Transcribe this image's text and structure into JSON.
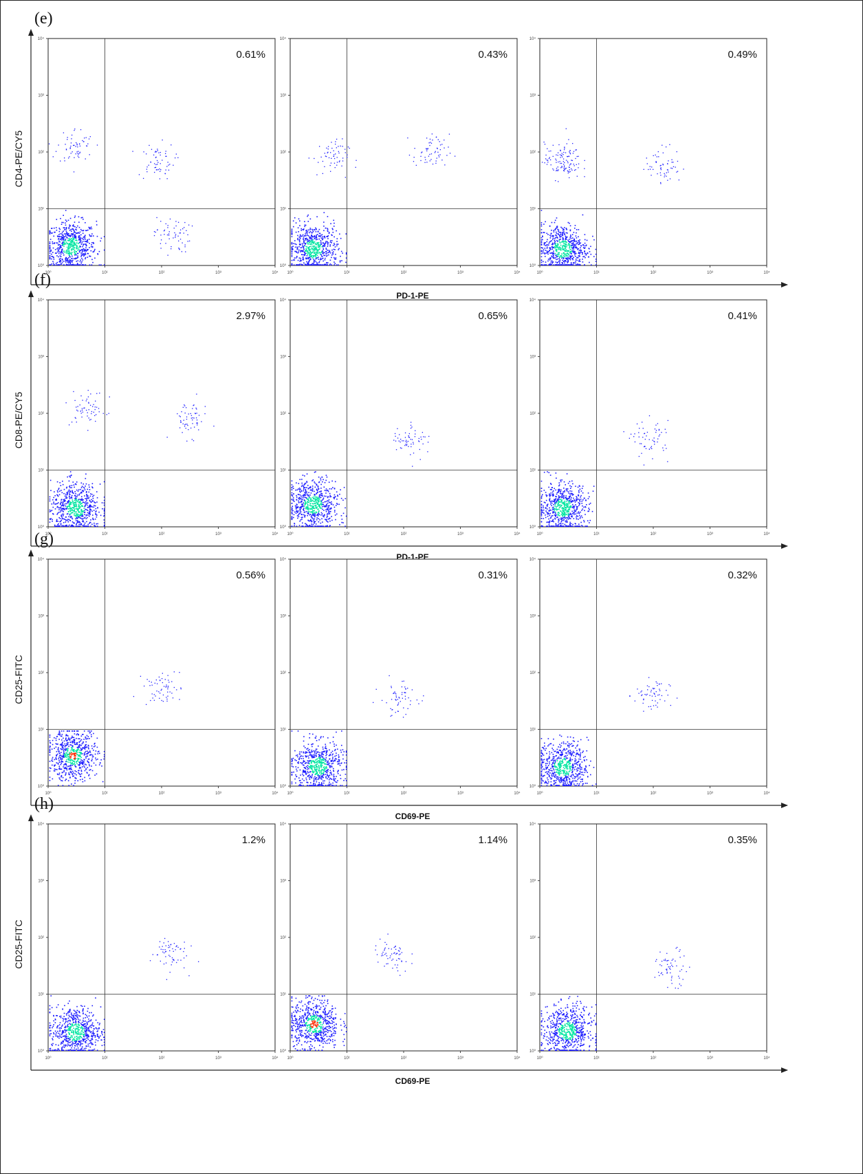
{
  "figure": {
    "colors": {
      "axis": "#222222",
      "dots_low": "#1a1aff",
      "dots_mid": "#00e5a0",
      "dots_high": "#ff2a00"
    },
    "rows": [
      {
        "label": "(e)",
        "ylabel": "CD4-PE/CY5",
        "xlabel": "PD-1-PE"
      },
      {
        "label": "(f)",
        "ylabel": "CD8-PE/CY5",
        "xlabel": "PD-1-PE"
      },
      {
        "label": "(g)",
        "ylabel": "CD25-FITC",
        "xlabel": "CD69-PE"
      },
      {
        "label": "(h)",
        "ylabel": "CD25-FITC",
        "xlabel": "CD69-PE"
      }
    ]
  },
  "chart_data": [
    {
      "type": "scatter",
      "panel": "e-1",
      "title": "",
      "xlabel": "PD-1-PE",
      "ylabel": "CD4-PE/CY5",
      "scale": "log",
      "xlim": [
        1,
        10000
      ],
      "ylim": [
        1,
        10000
      ],
      "quadrant_gate": {
        "x": 10,
        "y": 10
      },
      "annotation": "0.61%",
      "grid": false,
      "populations": [
        {
          "region": "Q3",
          "x_center": 2.5,
          "y_center": 2.2,
          "density": "high",
          "heat": "blue-green"
        },
        {
          "region": "Q1",
          "x_center": 3.0,
          "y_center": 130,
          "density": "low"
        },
        {
          "region": "Q2",
          "x_center": 80,
          "y_center": 70,
          "density": "low"
        },
        {
          "region": "Q4",
          "x_center": 150,
          "y_center": 3.5,
          "density": "low"
        }
      ]
    },
    {
      "type": "scatter",
      "panel": "e-2",
      "title": "",
      "xlabel": "PD-1-PE",
      "ylabel": "CD4-PE/CY5",
      "scale": "log",
      "xlim": [
        1,
        10000
      ],
      "ylim": [
        1,
        10000
      ],
      "quadrant_gate": {
        "x": 10,
        "y": 10
      },
      "annotation": "0.43%",
      "grid": false,
      "populations": [
        {
          "region": "Q3",
          "x_center": 2.5,
          "y_center": 2.0,
          "density": "high",
          "heat": "blue-green"
        },
        {
          "region": "Q1",
          "x_center": 5,
          "y_center": 80,
          "density": "low"
        },
        {
          "region": "Q2",
          "x_center": 300,
          "y_center": 100,
          "density": "low"
        }
      ]
    },
    {
      "type": "scatter",
      "panel": "e-3",
      "title": "",
      "xlabel": "PD-1-PE",
      "ylabel": "CD4-PE/CY5",
      "scale": "log",
      "xlim": [
        1,
        10000
      ],
      "ylim": [
        1,
        10000
      ],
      "quadrant_gate": {
        "x": 10,
        "y": 10
      },
      "annotation": "0.49%",
      "grid": false,
      "populations": [
        {
          "region": "Q3",
          "x_center": 2.5,
          "y_center": 2.0,
          "density": "high",
          "heat": "blue-green"
        },
        {
          "region": "Q1",
          "x_center": 2.5,
          "y_center": 70,
          "density": "medium"
        },
        {
          "region": "Q2",
          "x_center": 150,
          "y_center": 60,
          "density": "low"
        }
      ]
    },
    {
      "type": "scatter",
      "panel": "f-1",
      "title": "",
      "xlabel": "PD-1-PE",
      "ylabel": "CD8-PE/CY5",
      "scale": "log",
      "xlim": [
        1,
        10000
      ],
      "ylim": [
        1,
        10000
      ],
      "quadrant_gate": {
        "x": 10,
        "y": 10
      },
      "annotation": "2.97%",
      "grid": false,
      "populations": [
        {
          "region": "Q3",
          "x_center": 3.0,
          "y_center": 2.2,
          "density": "high",
          "heat": "blue-green"
        },
        {
          "region": "Q1",
          "x_center": 5,
          "y_center": 120,
          "density": "low"
        },
        {
          "region": "Q2",
          "x_center": 300,
          "y_center": 80,
          "density": "low"
        }
      ]
    },
    {
      "type": "scatter",
      "panel": "f-2",
      "title": "",
      "xlabel": "PD-1-PE",
      "ylabel": "CD8-PE/CY5",
      "scale": "log",
      "xlim": [
        1,
        10000
      ],
      "ylim": [
        1,
        10000
      ],
      "quadrant_gate": {
        "x": 10,
        "y": 10
      },
      "annotation": "0.65%",
      "grid": false,
      "populations": [
        {
          "region": "Q3",
          "x_center": 2.5,
          "y_center": 2.5,
          "density": "high",
          "heat": "blue-green"
        },
        {
          "region": "Q2",
          "x_center": 130,
          "y_center": 35,
          "density": "low"
        }
      ]
    },
    {
      "type": "scatter",
      "panel": "f-3",
      "title": "",
      "xlabel": "PD-1-PE",
      "ylabel": "CD8-PE/CY5",
      "scale": "log",
      "xlim": [
        1,
        10000
      ],
      "ylim": [
        1,
        10000
      ],
      "quadrant_gate": {
        "x": 10,
        "y": 10
      },
      "annotation": "0.41%",
      "grid": false,
      "populations": [
        {
          "region": "Q3",
          "x_center": 2.5,
          "y_center": 2.2,
          "density": "high",
          "heat": "blue-green"
        },
        {
          "region": "Q2",
          "x_center": 90,
          "y_center": 35,
          "density": "low"
        }
      ]
    },
    {
      "type": "scatter",
      "panel": "g-1",
      "title": "",
      "xlabel": "CD69-PE",
      "ylabel": "CD25-FITC",
      "scale": "log",
      "xlim": [
        1,
        10000
      ],
      "ylim": [
        1,
        10000
      ],
      "quadrant_gate": {
        "x": 10,
        "y": 10
      },
      "annotation": "0.56%",
      "grid": false,
      "populations": [
        {
          "region": "Q3",
          "x_center": 2.7,
          "y_center": 3.5,
          "density": "high",
          "heat": "blue-green-red"
        },
        {
          "region": "Q2",
          "x_center": 100,
          "y_center": 55,
          "density": "low"
        }
      ]
    },
    {
      "type": "scatter",
      "panel": "g-2",
      "title": "",
      "xlabel": "CD69-PE",
      "ylabel": "CD25-FITC",
      "scale": "log",
      "xlim": [
        1,
        10000
      ],
      "ylim": [
        1,
        10000
      ],
      "quadrant_gate": {
        "x": 10,
        "y": 10
      },
      "annotation": "0.31%",
      "grid": false,
      "populations": [
        {
          "region": "Q3",
          "x_center": 3.0,
          "y_center": 2.3,
          "density": "high",
          "heat": "blue-green"
        },
        {
          "region": "Q2",
          "x_center": 80,
          "y_center": 35,
          "density": "low"
        }
      ]
    },
    {
      "type": "scatter",
      "panel": "g-3",
      "title": "",
      "xlabel": "CD69-PE",
      "ylabel": "CD25-FITC",
      "scale": "log",
      "xlim": [
        1,
        10000
      ],
      "ylim": [
        1,
        10000
      ],
      "quadrant_gate": {
        "x": 10,
        "y": 10
      },
      "annotation": "0.32%",
      "grid": false,
      "populations": [
        {
          "region": "Q3",
          "x_center": 2.5,
          "y_center": 2.2,
          "density": "high",
          "heat": "blue-green"
        },
        {
          "region": "Q2",
          "x_center": 90,
          "y_center": 40,
          "density": "low"
        }
      ]
    },
    {
      "type": "scatter",
      "panel": "h-1",
      "title": "",
      "xlabel": "CD69-PE",
      "ylabel": "CD25-FITC",
      "scale": "log",
      "xlim": [
        1,
        10000
      ],
      "ylim": [
        1,
        10000
      ],
      "quadrant_gate": {
        "x": 10,
        "y": 10
      },
      "annotation": "1.2%",
      "grid": false,
      "populations": [
        {
          "region": "Q3",
          "x_center": 3.0,
          "y_center": 2.2,
          "density": "high",
          "heat": "blue-green"
        },
        {
          "region": "Q2",
          "x_center": 130,
          "y_center": 55,
          "density": "low"
        }
      ]
    },
    {
      "type": "scatter",
      "panel": "h-2",
      "title": "",
      "xlabel": "CD69-PE",
      "ylabel": "CD25-FITC",
      "scale": "log",
      "xlim": [
        1,
        10000
      ],
      "ylim": [
        1,
        10000
      ],
      "quadrant_gate": {
        "x": 10,
        "y": 10
      },
      "annotation": "1.14%",
      "grid": false,
      "populations": [
        {
          "region": "Q3",
          "x_center": 2.6,
          "y_center": 3.0,
          "density": "high",
          "heat": "blue-green-red"
        },
        {
          "region": "Q2",
          "x_center": 60,
          "y_center": 45,
          "density": "low"
        }
      ]
    },
    {
      "type": "scatter",
      "panel": "h-3",
      "title": "",
      "xlabel": "CD69-PE",
      "ylabel": "CD25-FITC",
      "scale": "log",
      "xlim": [
        1,
        10000
      ],
      "ylim": [
        1,
        10000
      ],
      "quadrant_gate": {
        "x": 10,
        "y": 10
      },
      "annotation": "0.35%",
      "grid": false,
      "populations": [
        {
          "region": "Q3",
          "x_center": 3.0,
          "y_center": 2.3,
          "density": "high",
          "heat": "blue-green"
        },
        {
          "region": "Q2",
          "x_center": 200,
          "y_center": 30,
          "density": "low"
        }
      ]
    }
  ]
}
